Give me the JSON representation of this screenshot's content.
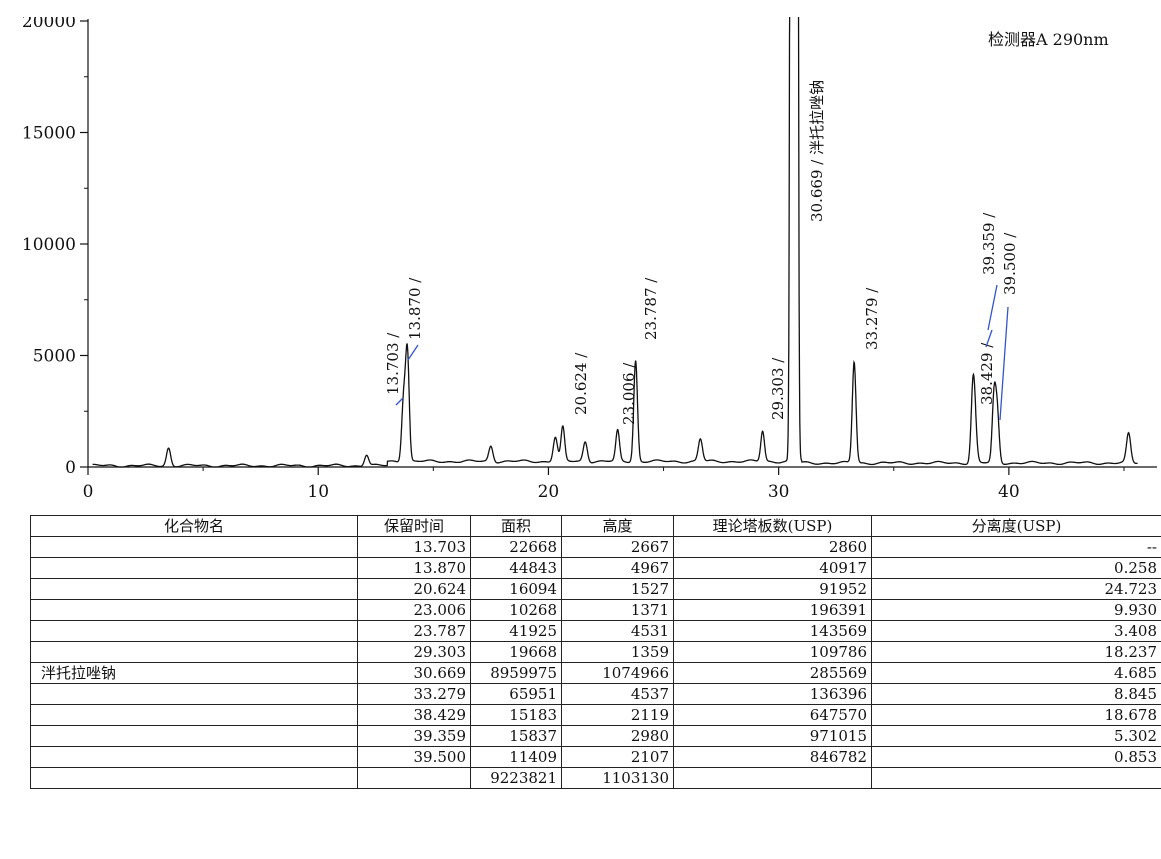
{
  "detector_label": "检测器A 290nm",
  "chart_data": {
    "type": "line",
    "xlim": [
      0,
      46
    ],
    "ylim": [
      0,
      20000
    ],
    "x_ticks": [
      "0",
      "10",
      "20",
      "30",
      "40"
    ],
    "y_ticks": [
      "0",
      "5000",
      "10000",
      "15000",
      "20000"
    ],
    "baseline_peaks": [
      {
        "rt": 3.5,
        "height": 800
      },
      {
        "rt": 12.1,
        "height": 500
      },
      {
        "rt": 17.5,
        "height": 700
      },
      {
        "rt": 20.3,
        "height": 1100
      },
      {
        "rt": 21.6,
        "height": 900
      },
      {
        "rt": 26.6,
        "height": 1000
      },
      {
        "rt": 38.5,
        "height": 2200
      },
      {
        "rt": 45.2,
        "height": 1300
      }
    ],
    "labeled_peaks": [
      {
        "label": "13.703 /",
        "rt": 13.703,
        "height": 2667
      },
      {
        "label": "13.870 /",
        "rt": 13.87,
        "height": 4967
      },
      {
        "label": "20.624 /",
        "rt": 20.624,
        "height": 1527
      },
      {
        "label": "23.006 /",
        "rt": 23.006,
        "height": 1371
      },
      {
        "label": "23.787 /",
        "rt": 23.787,
        "height": 4531
      },
      {
        "label": "29.303 /",
        "rt": 29.303,
        "height": 1359
      },
      {
        "label": "30.669 / 泮托拉唑钠",
        "rt": 30.669,
        "height": 1074966
      },
      {
        "label": "33.279 /",
        "rt": 33.279,
        "height": 4537
      },
      {
        "label": "38.429 /",
        "rt": 38.429,
        "height": 2119
      },
      {
        "label": "39.359 /",
        "rt": 39.359,
        "height": 2980
      },
      {
        "label": "39.500 /",
        "rt": 39.5,
        "height": 2107
      }
    ]
  },
  "table": {
    "headers": [
      "化合物名",
      "保留时间",
      "面积",
      "高度",
      "理论塔板数(USP)",
      "分离度(USP)"
    ],
    "rows": [
      [
        "",
        "13.703",
        "22668",
        "2667",
        "2860",
        "--"
      ],
      [
        "",
        "13.870",
        "44843",
        "4967",
        "40917",
        "0.258"
      ],
      [
        "",
        "20.624",
        "16094",
        "1527",
        "91952",
        "24.723"
      ],
      [
        "",
        "23.006",
        "10268",
        "1371",
        "196391",
        "9.930"
      ],
      [
        "",
        "23.787",
        "41925",
        "4531",
        "143569",
        "3.408"
      ],
      [
        "",
        "29.303",
        "19668",
        "1359",
        "109786",
        "18.237"
      ],
      [
        "泮托拉唑钠",
        "30.669",
        "8959975",
        "1074966",
        "285569",
        "4.685"
      ],
      [
        "",
        "33.279",
        "65951",
        "4537",
        "136396",
        "8.845"
      ],
      [
        "",
        "38.429",
        "15183",
        "2119",
        "647570",
        "18.678"
      ],
      [
        "",
        "39.359",
        "15837",
        "2980",
        "971015",
        "5.302"
      ],
      [
        "",
        "39.500",
        "11409",
        "2107",
        "846782",
        "0.853"
      ],
      [
        "",
        "",
        "9223821",
        "1103130",
        "",
        ""
      ]
    ]
  }
}
